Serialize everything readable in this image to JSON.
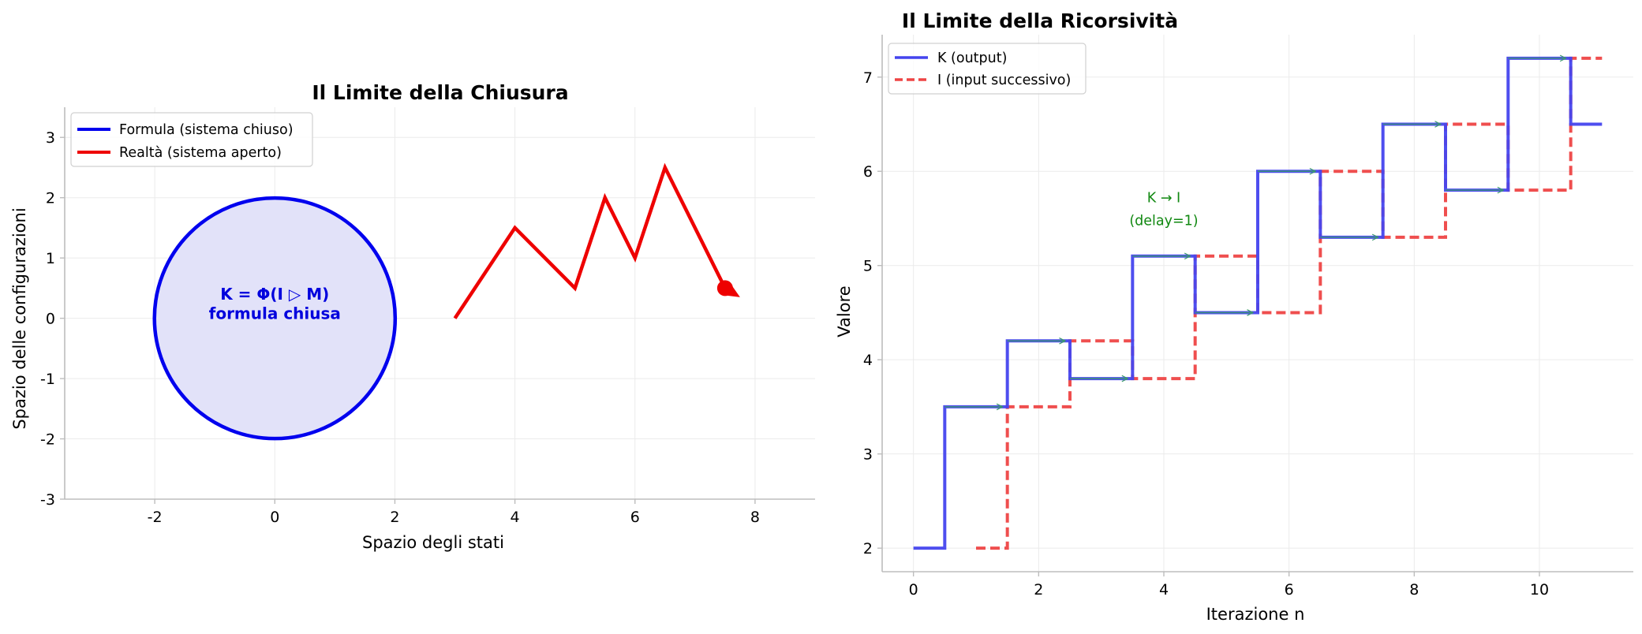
{
  "chart_data": [
    {
      "type": "line",
      "title": "Il Limite della Chiusura",
      "xlabel": "Spazio degli stati",
      "ylabel": "Spazio delle configurazioni",
      "xlim": [
        -3.5,
        9
      ],
      "ylim": [
        -3,
        3.5
      ],
      "xticks": [
        -2,
        0,
        2,
        4,
        6,
        8
      ],
      "xtick_labels": [
        "-2",
        "0",
        "2",
        "4",
        "6",
        "8"
      ],
      "yticks": [
        -3,
        -2,
        -1,
        0,
        1,
        2,
        3
      ],
      "ytick_labels": [
        "-3",
        "-2",
        "-1",
        "0",
        "1",
        "2",
        "3"
      ],
      "grid": true,
      "legend": "upper-left",
      "series": [
        {
          "name": "Formula (sistema chiuso)",
          "kind": "circle",
          "center": [
            0,
            0
          ],
          "radius": 2,
          "color": "#0000ee",
          "fill": "#e2e2f9"
        },
        {
          "name": "Realtà (sistema aperto)",
          "kind": "polyline",
          "x": [
            3,
            4,
            5,
            5.5,
            6,
            6.5,
            7.5
          ],
          "y": [
            0,
            1.5,
            0.5,
            2,
            1,
            2.5,
            0.5
          ],
          "color": "#ee0000",
          "arrow_end": [
            7.5,
            0.5
          ],
          "arrow_tip": [
            7.75,
            0.35
          ]
        }
      ],
      "annotations": [
        {
          "text": "K = Φ(I ▷ M)",
          "x": 0,
          "y": 0.4,
          "color": "#0000dd"
        },
        {
          "text": "formula chiusa",
          "x": 0,
          "y": 0.08,
          "color": "#0000dd"
        }
      ]
    },
    {
      "type": "line",
      "title": "Il Limite della Ricorsività",
      "xlabel": "Iterazione n",
      "ylabel": "Valore",
      "xlim": [
        -0.5,
        11.5
      ],
      "ylim": [
        1.75,
        7.45
      ],
      "xticks": [
        0,
        2,
        4,
        6,
        8,
        10
      ],
      "xtick_labels": [
        "0",
        "2",
        "4",
        "6",
        "8",
        "10"
      ],
      "yticks": [
        2,
        3,
        4,
        5,
        6,
        7
      ],
      "ytick_labels": [
        "2",
        "3",
        "4",
        "5",
        "6",
        "7"
      ],
      "grid": true,
      "legend": "upper-left",
      "series": [
        {
          "name": "K (output)",
          "step": "mid",
          "x": [
            0,
            1,
            2,
            3,
            4,
            5,
            6,
            7,
            8,
            9,
            10,
            11
          ],
          "values": [
            2,
            3.5,
            4.2,
            3.8,
            5.1,
            4.5,
            6.0,
            5.3,
            6.5,
            5.8,
            7.2,
            6.5
          ],
          "color": "#4444ee",
          "dash": "solid"
        },
        {
          "name": "I (input successivo)",
          "step": "mid",
          "x": [
            1,
            2,
            3,
            4,
            5,
            6,
            7,
            8,
            9,
            10,
            11
          ],
          "values": [
            2,
            3.5,
            4.2,
            3.8,
            5.1,
            4.5,
            6.0,
            5.3,
            6.5,
            5.8,
            7.2
          ],
          "color": "#ee4444",
          "dash": "dashed"
        }
      ],
      "arrows": {
        "color": "#3a9a6a",
        "segments": [
          {
            "x0": 0.5,
            "x1": 1.5,
            "y": 3.5
          },
          {
            "x0": 1.5,
            "x1": 2.5,
            "y": 4.2
          },
          {
            "x0": 2.5,
            "x1": 3.5,
            "y": 3.8
          },
          {
            "x0": 3.5,
            "x1": 4.5,
            "y": 5.1
          },
          {
            "x0": 4.5,
            "x1": 5.5,
            "y": 4.5
          },
          {
            "x0": 5.5,
            "x1": 6.5,
            "y": 6.0
          },
          {
            "x0": 6.5,
            "x1": 7.5,
            "y": 5.3
          },
          {
            "x0": 7.5,
            "x1": 8.5,
            "y": 6.5
          },
          {
            "x0": 8.5,
            "x1": 9.5,
            "y": 5.8
          },
          {
            "x0": 9.5,
            "x1": 10.5,
            "y": 7.2
          }
        ]
      },
      "annotations": [
        {
          "text": "K → I",
          "x": 4,
          "y": 5.72,
          "color": "#118811"
        },
        {
          "text": "(delay=1)",
          "x": 4,
          "y": 5.48,
          "color": "#118811"
        }
      ]
    }
  ]
}
